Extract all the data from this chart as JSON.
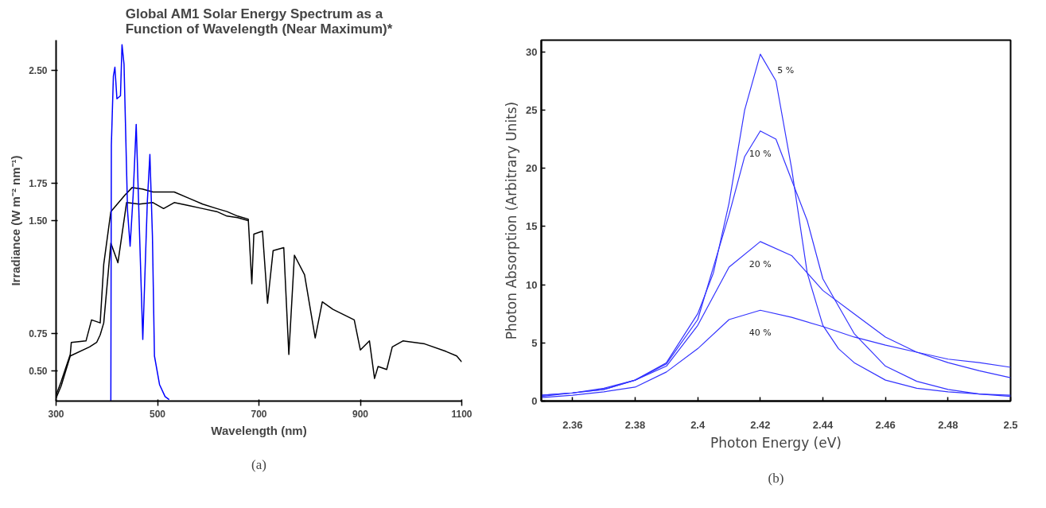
{
  "chart_data": [
    {
      "type": "line",
      "title": "Global AM1 Solar Energy Spectrum as a Function of Wavelength (Near Maximum)*",
      "xlabel": "Wavelength (nm)",
      "ylabel": "Irradiance (W m⁻² nm⁻¹)",
      "xlim": [
        300,
        1100
      ],
      "ylim": [
        0.3,
        2.7
      ],
      "xticks": [
        300,
        500,
        700,
        900,
        1100
      ],
      "yticks": [
        {
          "value": 0.5,
          "label": "0.50"
        },
        {
          "value": 0.75,
          "label": "0.75"
        },
        {
          "value": 1.5,
          "label": "1.50"
        },
        {
          "value": 1.75,
          "label": "1.75"
        },
        {
          "value": 2.5,
          "label": "2.50"
        }
      ],
      "grid": false,
      "series": [
        {
          "color": "#000000",
          "x": [
            300,
            310,
            328,
            330,
            359,
            370,
            387,
            394,
            408,
            436,
            450,
            470,
            491,
            512,
            533,
            561,
            589,
            617,
            637,
            658,
            679,
            686,
            690,
            707,
            717,
            728,
            749,
            759,
            770,
            790,
            811,
            825,
            846,
            888,
            900,
            918,
            928,
            935,
            952,
            963,
            984,
            1027,
            1069,
            1090,
            1100
          ],
          "values": [
            0.34,
            0.43,
            0.61,
            0.69,
            0.7,
            0.84,
            0.82,
            1.21,
            1.56,
            1.67,
            1.72,
            1.71,
            1.69,
            1.69,
            1.69,
            1.65,
            1.61,
            1.58,
            1.56,
            1.53,
            1.51,
            1.08,
            1.41,
            1.43,
            0.95,
            1.3,
            1.32,
            0.61,
            1.27,
            1.14,
            0.72,
            0.96,
            0.91,
            0.84,
            0.64,
            0.7,
            0.45,
            0.53,
            0.51,
            0.66,
            0.7,
            0.68,
            0.63,
            0.6,
            0.56
          ]
        },
        {
          "color": "#000000",
          "x": [
            300,
            310,
            328,
            366,
            380,
            387,
            394,
            408,
            422,
            439,
            464,
            491,
            512,
            533,
            561,
            589,
            617,
            637,
            658,
            679
          ],
          "values": [
            0.32,
            0.4,
            0.6,
            0.66,
            0.69,
            0.74,
            0.82,
            1.35,
            1.22,
            1.62,
            1.61,
            1.62,
            1.58,
            1.62,
            1.6,
            1.58,
            1.56,
            1.53,
            1.52,
            1.5
          ]
        },
        {
          "color": "#0000ff",
          "x": [
            408,
            409,
            413,
            416,
            420,
            427,
            430,
            434,
            441,
            446,
            452,
            458,
            462,
            471,
            480,
            485,
            490,
            494,
            504,
            515,
            523
          ],
          "values": [
            0.3,
            2.0,
            2.46,
            2.52,
            2.31,
            2.33,
            2.67,
            2.54,
            1.56,
            1.33,
            1.67,
            2.14,
            1.7,
            0.71,
            1.63,
            1.94,
            1.4,
            0.6,
            0.41,
            0.33,
            0.31
          ]
        }
      ],
      "annotations": [
        "(a)"
      ]
    },
    {
      "type": "line",
      "xlabel": "Photon Energy (eV)",
      "ylabel": "Photon Absorption (Arbitrary Units)",
      "xlim": [
        2.35,
        2.5
      ],
      "ylim": [
        0,
        31
      ],
      "xticks": [
        2.36,
        2.38,
        2.4,
        2.42,
        2.44,
        2.46,
        2.48,
        2.5
      ],
      "yticks": [
        0,
        5,
        10,
        15,
        20,
        25,
        30
      ],
      "grid": false,
      "series": [
        {
          "name": "5 %",
          "color": "#3333ff",
          "x": [
            2.35,
            2.36,
            2.37,
            2.38,
            2.39,
            2.4,
            2.405,
            2.41,
            2.415,
            2.42,
            2.425,
            2.43,
            2.435,
            2.44,
            2.445,
            2.45,
            2.46,
            2.47,
            2.48,
            2.49,
            2.5
          ],
          "values": [
            0.4,
            0.7,
            1.0,
            1.8,
            3.3,
            7.5,
            11,
            17,
            25,
            29.8,
            27.5,
            20,
            11,
            6.5,
            4.5,
            3.3,
            1.8,
            1.1,
            0.8,
            0.6,
            0.4
          ]
        },
        {
          "name": "10 %",
          "color": "#3333ff",
          "x": [
            2.35,
            2.36,
            2.37,
            2.38,
            2.39,
            2.4,
            2.41,
            2.415,
            2.42,
            2.425,
            2.43,
            2.435,
            2.44,
            2.45,
            2.46,
            2.47,
            2.48,
            2.49,
            2.5
          ],
          "values": [
            0.5,
            0.7,
            1.1,
            1.8,
            3.2,
            7.0,
            16,
            21,
            23.2,
            22.5,
            19,
            15.5,
            10.5,
            5.8,
            3.0,
            1.7,
            1.0,
            0.6,
            0.5
          ]
        },
        {
          "name": "20 %",
          "color": "#3333ff",
          "x": [
            2.35,
            2.36,
            2.37,
            2.38,
            2.39,
            2.4,
            2.41,
            2.42,
            2.43,
            2.44,
            2.45,
            2.46,
            2.47,
            2.48,
            2.49,
            2.5
          ],
          "values": [
            0.5,
            0.7,
            1.0,
            1.8,
            3.0,
            6.5,
            11.5,
            13.7,
            12.5,
            9.5,
            7.5,
            5.5,
            4.2,
            3.3,
            2.6,
            2.0
          ]
        },
        {
          "name": "40 %",
          "color": "#3333ff",
          "x": [
            2.35,
            2.36,
            2.37,
            2.38,
            2.39,
            2.4,
            2.41,
            2.42,
            2.43,
            2.44,
            2.45,
            2.46,
            2.47,
            2.48,
            2.49,
            2.5
          ],
          "values": [
            0.3,
            0.5,
            0.8,
            1.2,
            2.5,
            4.5,
            7.0,
            7.8,
            7.2,
            6.4,
            5.5,
            4.8,
            4.2,
            3.6,
            3.3,
            2.9
          ]
        }
      ],
      "annotations": [
        "(b)"
      ]
    }
  ]
}
